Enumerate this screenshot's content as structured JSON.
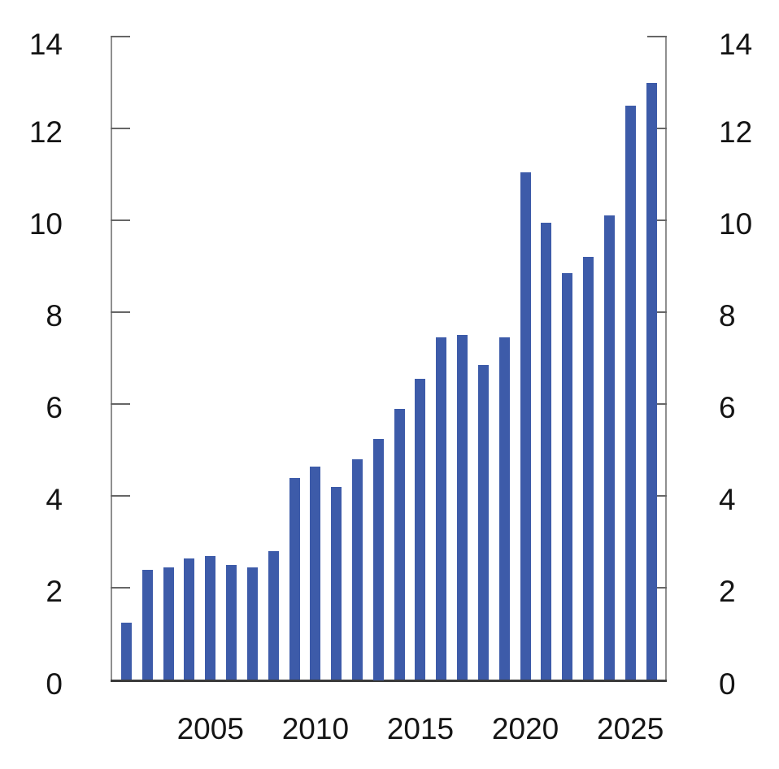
{
  "chart_data": {
    "type": "bar",
    "title": "",
    "xlabel": "",
    "ylabel": "",
    "x": [
      2001,
      2002,
      2003,
      2004,
      2005,
      2006,
      2007,
      2008,
      2009,
      2010,
      2011,
      2012,
      2013,
      2014,
      2015,
      2016,
      2017,
      2018,
      2019,
      2020,
      2021,
      2022,
      2023,
      2024,
      2025,
      2026
    ],
    "values": [
      1.25,
      2.4,
      2.45,
      2.65,
      2.7,
      2.5,
      2.45,
      2.8,
      4.4,
      4.65,
      4.2,
      4.8,
      5.25,
      5.9,
      6.55,
      7.45,
      7.5,
      6.85,
      7.45,
      11.05,
      9.95,
      8.85,
      9.2,
      10.1,
      12.5,
      13.0
    ],
    "ylim": [
      0,
      14
    ],
    "yticks": [
      0,
      2,
      4,
      6,
      8,
      10,
      12,
      14
    ],
    "ytick_labels": [
      "0",
      "2",
      "4",
      "6",
      "8",
      "10",
      "12",
      "14"
    ],
    "y_axis_mirrored_right": true,
    "xtick_labels": [
      "2005",
      "2010",
      "2015",
      "2020",
      "2025"
    ],
    "xtick_years": [
      2005,
      2010,
      2015,
      2020,
      2025
    ],
    "grid": "off",
    "legend": "none",
    "colors": {
      "bar": "#3D5BA9",
      "axis_line": "#8F8F8F",
      "tick_mark": "#666666",
      "baseline": "#3A3A3A",
      "label_text": "#141414"
    }
  }
}
